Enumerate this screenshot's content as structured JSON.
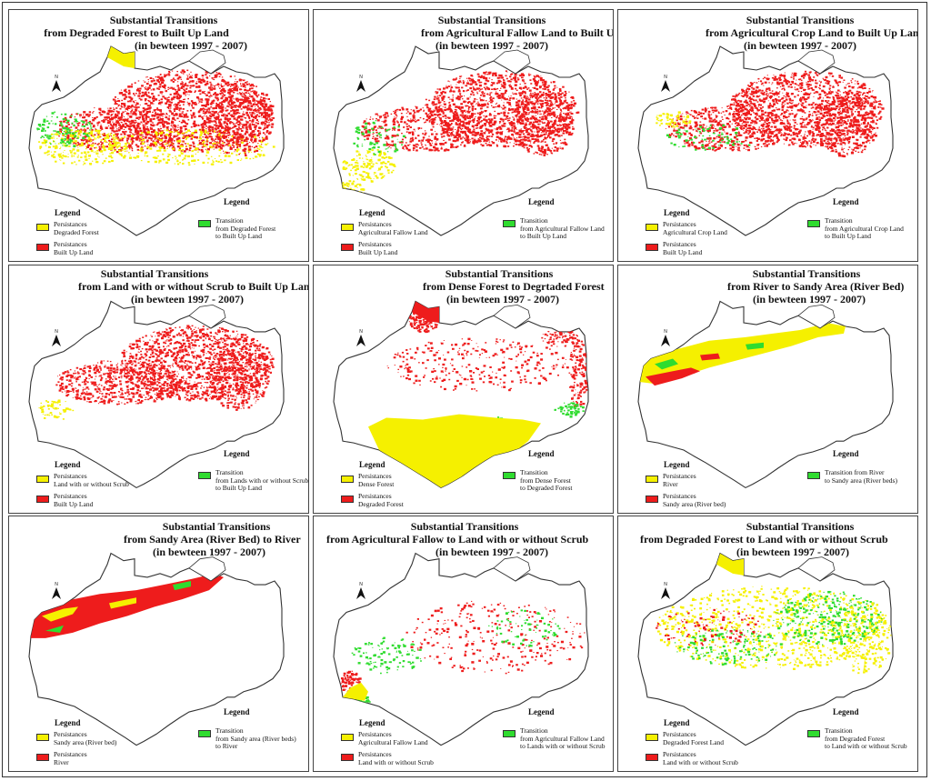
{
  "colors": {
    "persistence_a": "#f5f000",
    "persistence_b": "#ee1c1c",
    "transition": "#2fdc2f",
    "outline": "#333333"
  },
  "common": {
    "legend_title": "Legend",
    "north_label": "N"
  },
  "panels": [
    {
      "id": "p1",
      "title": [
        "Substantial Transitions",
        "from Degraded Forest to Built Up Land",
        "(in bewteen 1997 - 2007)"
      ],
      "legend": [
        {
          "color": "#f5f000",
          "lines": [
            "Persistances",
            "Degraded Forest"
          ]
        },
        {
          "color": "#ee1c1c",
          "lines": [
            "Persistances",
            "Built Up Land"
          ]
        },
        {
          "color": "#2fdc2f",
          "lines": [
            "Transition",
            "from Degraded Forest",
            "to Built Up Land"
          ]
        }
      ]
    },
    {
      "id": "p2",
      "title": [
        "Substantial Transitions",
        "from Agricultural Fallow Land to Built Up Land",
        "(in bewteen 1997 - 2007)"
      ],
      "legend": [
        {
          "color": "#f5f000",
          "lines": [
            "Persistances",
            "Agricultural Fallow Land"
          ]
        },
        {
          "color": "#ee1c1c",
          "lines": [
            "Persistances",
            "Built Up Land"
          ]
        },
        {
          "color": "#2fdc2f",
          "lines": [
            "Transition",
            "from Agricultural Fallow Land",
            "to Built Up Land"
          ]
        }
      ]
    },
    {
      "id": "p3",
      "title": [
        "Substantial Transitions",
        "from Agricultural Crop Land to Built Up Land",
        "(in bewteen 1997 - 2007)"
      ],
      "legend": [
        {
          "color": "#f5f000",
          "lines": [
            "Persistances",
            "Agricultural Crop Land"
          ]
        },
        {
          "color": "#ee1c1c",
          "lines": [
            "Persistances",
            "Built Up Land"
          ]
        },
        {
          "color": "#2fdc2f",
          "lines": [
            "Transition",
            "from Agricultural Crop Land",
            "to Built Up Land"
          ]
        }
      ]
    },
    {
      "id": "p4",
      "title": [
        "Substantial Transitions",
        "from Land with or without Scrub to Built Up Land",
        "(in bewteen 1997 - 2007)"
      ],
      "legend": [
        {
          "color": "#f5f000",
          "lines": [
            "Persistances",
            "Land with or without Scrub"
          ]
        },
        {
          "color": "#ee1c1c",
          "lines": [
            "Persistances",
            "Built Up Land"
          ]
        },
        {
          "color": "#2fdc2f",
          "lines": [
            "Transition",
            "from  Lands with or without Scrub",
            "to Built Up Land"
          ]
        }
      ]
    },
    {
      "id": "p5",
      "title": [
        "Substantial Transitions",
        "from Dense Forest to Degrtaded Forest",
        "(in bewteen 1997 - 2007)"
      ],
      "legend": [
        {
          "color": "#f5f000",
          "lines": [
            "Persistances",
            "Dense Forest"
          ]
        },
        {
          "color": "#ee1c1c",
          "lines": [
            "Persistances",
            "Degraded Forest"
          ]
        },
        {
          "color": "#2fdc2f",
          "lines": [
            "Transition",
            "from Dense Forest",
            "to Degraded Forest"
          ]
        }
      ]
    },
    {
      "id": "p6",
      "title": [
        "Substantial Transitions",
        "from River to Sandy Area (River Bed)",
        "(in bewteen 1997 - 2007)"
      ],
      "legend": [
        {
          "color": "#f5f000",
          "lines": [
            "Persistances",
            "River"
          ]
        },
        {
          "color": "#ee1c1c",
          "lines": [
            "Persistances",
            "Sandy area (River bed)"
          ]
        },
        {
          "color": "#2fdc2f",
          "lines": [
            "Transition from River",
            "to Sandy area (River beds)"
          ]
        }
      ]
    },
    {
      "id": "p7",
      "title": [
        "Substantial Transitions",
        "from Sandy Area (River Bed) to River",
        "(in bewteen 1997 - 2007)"
      ],
      "legend": [
        {
          "color": "#f5f000",
          "lines": [
            "Persistances",
            "Sandy area (River bed)"
          ]
        },
        {
          "color": "#ee1c1c",
          "lines": [
            "Persistances",
            "River"
          ]
        },
        {
          "color": "#2fdc2f",
          "lines": [
            "Transition",
            "from Sandy area (River beds)",
            "to River"
          ]
        }
      ]
    },
    {
      "id": "p8",
      "title": [
        "Substantial Transitions",
        "from Agricultural Fallow to Land with or without Scrub",
        "(in bewteen 1997 - 2007)"
      ],
      "legend": [
        {
          "color": "#f5f000",
          "lines": [
            "Persistances",
            "Agricultural Fallow Land"
          ]
        },
        {
          "color": "#ee1c1c",
          "lines": [
            "Persistances",
            "Land with or without Scrub"
          ]
        },
        {
          "color": "#2fdc2f",
          "lines": [
            "Transition",
            "from  Agricultural Fallow Land",
            "to Lands with or without Scrub"
          ]
        }
      ]
    },
    {
      "id": "p9",
      "title": [
        "Substantial Transitions",
        "from Degraded Forest to Land with or without Scrub",
        "(in bewteen 1997 - 2007)"
      ],
      "legend": [
        {
          "color": "#f5f000",
          "lines": [
            "Persistances",
            "Degraded Forest Land"
          ]
        },
        {
          "color": "#ee1c1c",
          "lines": [
            "Persistances",
            "Land with or without Scrub"
          ]
        },
        {
          "color": "#2fdc2f",
          "lines": [
            "Transition",
            "from Degraded Forest",
            "to Land with or without Scrub"
          ]
        }
      ]
    }
  ]
}
